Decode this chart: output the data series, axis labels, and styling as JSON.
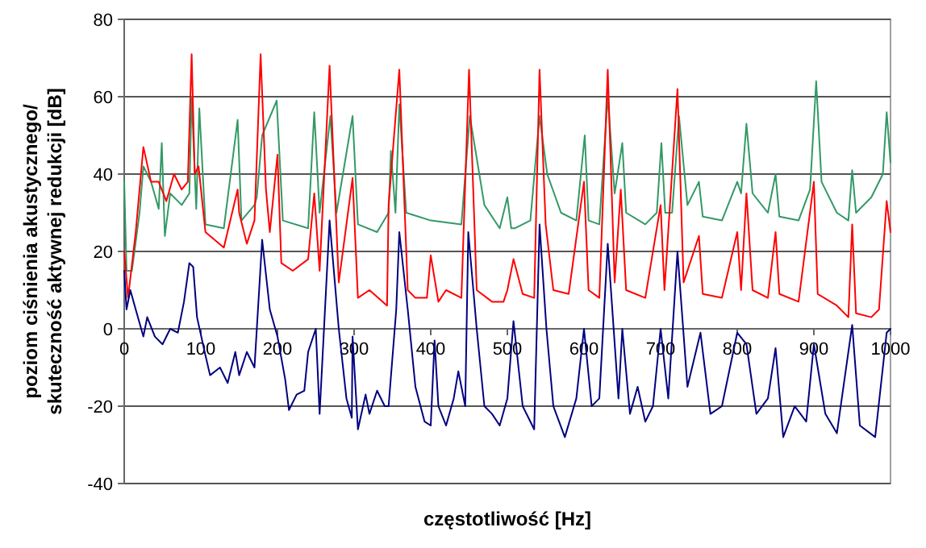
{
  "chart_data": {
    "type": "line",
    "xlabel": "częstotliwość [Hz]",
    "ylabel": "poziom ciśnienia akustycznego/\nskuteczność aktywnej redukcji [dB]",
    "xlim": [
      0,
      1000
    ],
    "ylim": [
      -40,
      80
    ],
    "xticks": [
      0,
      100,
      200,
      300,
      400,
      500,
      600,
      700,
      800,
      900,
      1000
    ],
    "yticks": [
      -40,
      -20,
      0,
      20,
      40,
      60,
      80
    ],
    "grid": "y",
    "marker": "none",
    "line_style": "solid",
    "series": [
      {
        "color": "#339966",
        "x": [
          0,
          3,
          10,
          20,
          25,
          35,
          45,
          49,
          53,
          60,
          75,
          85,
          88,
          94,
          98,
          106,
          130,
          148,
          153,
          170,
          173,
          180,
          199,
          207,
          240,
          248,
          255,
          269,
          277,
          298,
          305,
          330,
          345,
          348,
          354,
          359,
          368,
          400,
          440,
          451,
          470,
          490,
          500,
          505,
          510,
          530,
          542,
          552,
          570,
          590,
          601,
          606,
          620,
          631,
          640,
          650,
          655,
          680,
          695,
          701,
          706,
          715,
          724,
          735,
          750,
          755,
          780,
          800,
          805,
          812,
          820,
          840,
          850,
          855,
          880,
          895,
          903,
          910,
          930,
          945,
          950,
          955,
          975,
          990,
          995,
          1000
        ],
        "values": [
          38,
          15,
          15,
          30,
          42,
          38,
          31,
          48,
          24,
          35,
          32,
          35,
          60,
          31,
          57,
          27,
          26,
          54,
          28,
          32,
          34,
          50,
          59,
          28,
          26,
          56,
          30,
          55,
          30,
          55,
          27,
          25,
          30,
          46,
          30,
          58,
          30,
          28,
          27,
          55,
          32,
          26,
          34,
          26,
          26,
          28,
          55,
          40,
          30,
          28,
          50,
          28,
          27,
          60,
          35,
          48,
          30,
          27,
          30,
          48,
          30,
          30,
          55,
          32,
          38,
          29,
          28,
          38,
          35,
          53,
          35,
          30,
          40,
          29,
          28,
          36,
          64,
          38,
          30,
          28,
          41,
          30,
          34,
          40,
          56,
          43
        ]
      },
      {
        "color": "#ff0000",
        "x": [
          0,
          5,
          15,
          25,
          35,
          45,
          55,
          65,
          75,
          83,
          88,
          92,
          97,
          106,
          130,
          148,
          150,
          160,
          170,
          178,
          185,
          190,
          200,
          205,
          220,
          240,
          248,
          255,
          268,
          280,
          298,
          305,
          320,
          343,
          345,
          359,
          370,
          380,
          395,
          400,
          410,
          420,
          440,
          450,
          460,
          480,
          495,
          500,
          508,
          520,
          535,
          542,
          550,
          560,
          580,
          600,
          606,
          620,
          631,
          640,
          648,
          655,
          680,
          700,
          705,
          722,
          730,
          750,
          755,
          780,
          800,
          805,
          812,
          820,
          840,
          850,
          855,
          880,
          900,
          905,
          930,
          945,
          950,
          955,
          975,
          985,
          995,
          1000
        ],
        "values": [
          20,
          8,
          25,
          47,
          38,
          38,
          33,
          40,
          36,
          38,
          71,
          40,
          42,
          25,
          21,
          36,
          30,
          22,
          28,
          71,
          36,
          25,
          45,
          17,
          15,
          18,
          35,
          15,
          68,
          12,
          39,
          8,
          10,
          6,
          32,
          67,
          10,
          8,
          8,
          19,
          7,
          10,
          8,
          67,
          10,
          7,
          7,
          10,
          18,
          9,
          8,
          67,
          27,
          10,
          9,
          38,
          10,
          8,
          67,
          12,
          36,
          10,
          8,
          32,
          10,
          62,
          12,
          24,
          9,
          8,
          25,
          10,
          35,
          10,
          8,
          25,
          9,
          7,
          38,
          9,
          6,
          3,
          27,
          4,
          3,
          5,
          33,
          25
        ]
      },
      {
        "color": "#000080",
        "x": [
          0,
          3,
          8,
          15,
          25,
          30,
          40,
          50,
          60,
          70,
          78,
          85,
          90,
          95,
          105,
          112,
          125,
          135,
          145,
          150,
          160,
          170,
          180,
          190,
          200,
          210,
          215,
          225,
          235,
          240,
          250,
          255,
          268,
          280,
          290,
          297,
          298,
          305,
          315,
          320,
          330,
          340,
          345,
          355,
          359,
          370,
          380,
          392,
          400,
          405,
          410,
          420,
          430,
          436,
          445,
          449,
          460,
          470,
          480,
          490,
          500,
          508,
          520,
          535,
          542,
          551,
          560,
          575,
          590,
          600,
          610,
          620,
          631,
          645,
          650,
          660,
          670,
          680,
          690,
          700,
          710,
          722,
          735,
          752,
          765,
          780,
          800,
          812,
          825,
          840,
          850,
          860,
          875,
          890,
          900,
          915,
          930,
          950,
          960,
          980,
          995,
          1000
        ],
        "values": [
          15,
          5,
          10,
          5,
          -2,
          3,
          -2,
          -4,
          0,
          -1,
          7,
          17,
          16,
          3,
          -6,
          -12,
          -10,
          -14,
          -6,
          -12,
          -6,
          -10,
          23,
          5,
          -2,
          -13,
          -21,
          -17,
          -16,
          -6,
          0,
          -22,
          28,
          0,
          -18,
          -23,
          -2,
          -26,
          -17,
          -22,
          -16,
          -20,
          -20,
          5,
          25,
          5,
          -15,
          -24,
          -25,
          -3,
          -20,
          -25,
          -18,
          -11,
          -20,
          25,
          0,
          -20,
          -22,
          -25,
          -18,
          2,
          -20,
          -26,
          27,
          0,
          -20,
          -28,
          -18,
          0,
          -20,
          -18,
          22,
          -18,
          0,
          -22,
          -15,
          -24,
          -20,
          0,
          -18,
          20,
          -15,
          -1,
          -22,
          -20,
          -1,
          -4,
          -22,
          -18,
          -5,
          -28,
          -20,
          -24,
          -4,
          -22,
          -27,
          1,
          -25,
          -28,
          -1,
          0
        ]
      }
    ]
  }
}
